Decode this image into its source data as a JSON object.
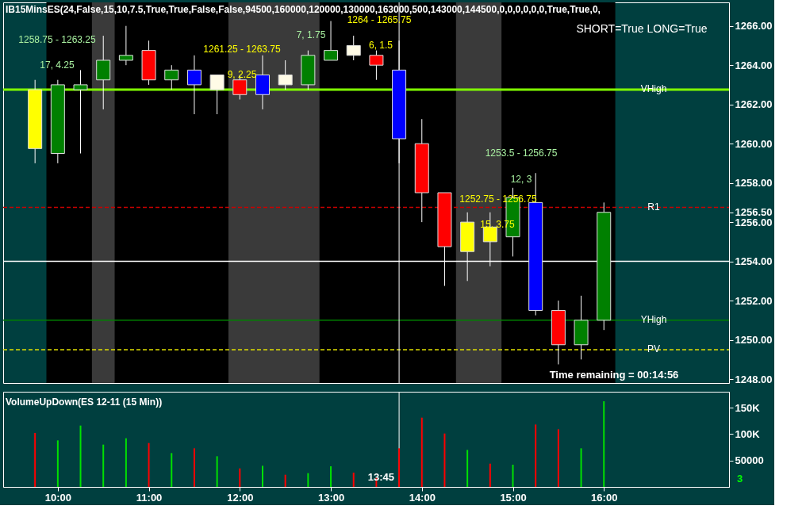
{
  "chart_data": [
    {
      "type": "candlestick",
      "title": "IB15MinsES(24,False,15,10,7.5,True,True,False,False,94500,160000,120000,130000,163000,500,143000,144500,0,0,0,0,0,0,True,True,0,",
      "x": [
        9.75,
        10,
        10.25,
        10.5,
        10.75,
        11,
        11.25,
        11.5,
        11.75,
        12,
        12.25,
        12.5,
        12.75,
        13,
        13.25,
        13.5,
        13.75,
        14,
        14.25,
        14.5,
        14.75,
        15,
        15.25,
        15.5,
        15.75,
        16
      ],
      "ohlc": [
        [
          1262.75,
          1263.25,
          1259,
          1259.75
        ],
        [
          1259.5,
          1263.25,
          1259,
          1263
        ],
        [
          1262.75,
          1263.75,
          1259.5,
          1263
        ],
        [
          1263.25,
          1265.5,
          1261.75,
          1264.25
        ],
        [
          1264.25,
          1266,
          1264,
          1264.5
        ],
        [
          1264.75,
          1265.25,
          1263,
          1263.25
        ],
        [
          1263.25,
          1264,
          1262.75,
          1263.75
        ],
        [
          1263.75,
          1264.5,
          1261.5,
          1263
        ],
        [
          1262.75,
          1263.5,
          1261.5,
          1263.5
        ],
        [
          1263.25,
          1263.5,
          1262.25,
          1262.5
        ],
        [
          1263.5,
          1264.5,
          1261.75,
          1262.5
        ],
        [
          1263,
          1264.25,
          1262.75,
          1263.5
        ],
        [
          1263,
          1264.75,
          1262.75,
          1264.5
        ],
        [
          1264.25,
          1266.25,
          1264.25,
          1264.75
        ],
        [
          1264.5,
          1265.5,
          1264.25,
          1265
        ],
        [
          1264.5,
          1264.75,
          1263.25,
          1264
        ],
        [
          1263.75,
          1265.25,
          1259,
          1260.25
        ],
        [
          1260,
          1261.25,
          1256,
          1257.5
        ],
        [
          1257.5,
          1257.5,
          1252.75,
          1254.75
        ],
        [
          1256,
          1256.5,
          1253,
          1254.5
        ],
        [
          1255.75,
          1256.5,
          1253.75,
          1255
        ],
        [
          1255.25,
          1257.75,
          1254.25,
          1257.25
        ],
        [
          1257,
          1258.5,
          1251.25,
          1251.5
        ],
        [
          1251.5,
          1252,
          1248.75,
          1249.75
        ],
        [
          1249.75,
          1252.25,
          1249,
          1251
        ],
        [
          1251,
          1257,
          1250.5,
          1256.5
        ]
      ],
      "colors": [
        "#ffff00",
        "#008000",
        "#008000",
        "#008000",
        "#008000",
        "#ff0000",
        "#008000",
        "#0000ff",
        "#fffbe6",
        "#ff0000",
        "#0000ff",
        "#fffbe6",
        "#008000",
        "#008000",
        "#fffbe6",
        "#ff0000",
        "#0000ff",
        "#ff0000",
        "#ff0000",
        "#ffff00",
        "#ffff00",
        "#008000",
        "#0000ff",
        "#ff0000",
        "#008000",
        "#008000"
      ],
      "xlim": [
        9.4,
        17.375
      ],
      "ylim": [
        1247.8,
        1267.2
      ],
      "yticks": [
        {
          "value": 1248,
          "label": "1248.00"
        },
        {
          "value": 1250,
          "label": "1250.00"
        },
        {
          "value": 1252,
          "label": "1252.00"
        },
        {
          "value": 1254,
          "label": "1254.00"
        },
        {
          "value": 1256,
          "label": "1256.00"
        },
        {
          "value": 1256.5,
          "label": "1256.50"
        },
        {
          "value": 1258,
          "label": "1258.00"
        },
        {
          "value": 1260,
          "label": "1260.00"
        },
        {
          "value": 1262,
          "label": "1262.00"
        },
        {
          "value": 1264,
          "label": "1264.00"
        },
        {
          "value": 1266,
          "label": "1266.00"
        }
      ],
      "tick_labels": "y",
      "grid": false,
      "bands": [
        {
          "axis": "x",
          "from": 9.875,
          "to": 16.125,
          "color": "#000000"
        },
        {
          "axis": "x",
          "from": 10.375,
          "to": 10.625,
          "color": "#3a3a3a"
        },
        {
          "axis": "x",
          "from": 11.875,
          "to": 12.875,
          "color": "#3a3a3a"
        },
        {
          "axis": "x",
          "from": 14.375,
          "to": 14.875,
          "color": "#3a3a3a"
        }
      ],
      "ref_lines": [
        {
          "axis": "y",
          "value": 1262.75,
          "label": "VHigh",
          "color": "#80ff00",
          "line_style": "solid"
        },
        {
          "axis": "y",
          "value": 1256.75,
          "label": "R1",
          "color": "#cc0000",
          "line_style": "dashed"
        },
        {
          "axis": "y",
          "value": 1254,
          "color": "#ffffff",
          "line_style": "solid"
        },
        {
          "axis": "y",
          "value": 1251,
          "label": "YHigh",
          "color": "#008000",
          "line_style": "solid"
        },
        {
          "axis": "y",
          "value": 1249.5,
          "label": "PV",
          "color": "#e0e000",
          "line_style": "dashed"
        },
        {
          "axis": "x",
          "value": 13.75,
          "color": "#ffffff",
          "line_style": "solid"
        }
      ],
      "annotations": [
        "1258.75 - 1263.25",
        "17, 4.25",
        "1261.25 - 1263.75",
        "9, 2.25",
        "7, 1.75",
        "1264 - 1265.75",
        "6, 1.5",
        "1253.5 - 1256.75",
        "12, 3",
        "1252.75 - 1256.75",
        "15, 3.75",
        "SHORT=True LONG=True",
        "Time remaining = 00:14:56"
      ]
    },
    {
      "type": "bar",
      "title": "VolumeUpDown(ES 12-11 (15 Min))",
      "x": [
        9.75,
        10,
        10.25,
        10.5,
        10.75,
        11,
        11.25,
        11.5,
        11.75,
        12,
        12.25,
        12.5,
        12.75,
        13,
        13.25,
        13.5,
        13.75,
        14,
        14.25,
        14.5,
        14.75,
        15,
        15.25,
        15.5,
        15.75,
        16
      ],
      "values": [
        102000,
        88000,
        116000,
        80000,
        92000,
        83000,
        64000,
        73000,
        58000,
        35000,
        40000,
        23000,
        26000,
        39000,
        27000,
        17000,
        73000,
        131000,
        101000,
        70000,
        44000,
        42000,
        118000,
        109000,
        73000,
        162000
      ],
      "colors": [
        "#ff0000",
        "#00e000",
        "#00e000",
        "#00e000",
        "#00e000",
        "#ff0000",
        "#00e000",
        "#ff0000",
        "#00e000",
        "#ff0000",
        "#00e000",
        "#ff0000",
        "#00e000",
        "#00e000",
        "#ff0000",
        "#ff0000",
        "#ff0000",
        "#ff0000",
        "#ff0000",
        "#00e000",
        "#ff0000",
        "#00e000",
        "#ff0000",
        "#ff0000",
        "#00e000",
        "#00e000"
      ],
      "xlim": [
        9.4,
        17.375
      ],
      "ylim": [
        0,
        180000
      ],
      "xticks": [
        {
          "value": 10,
          "label": "10:00"
        },
        {
          "value": 11,
          "label": "11:00"
        },
        {
          "value": 12,
          "label": "12:00"
        },
        {
          "value": 13,
          "label": "13:00"
        },
        {
          "value": 14,
          "label": "14:00"
        },
        {
          "value": 15,
          "label": "15:00"
        },
        {
          "value": 16,
          "label": "16:00"
        }
      ],
      "yticks": [
        {
          "value": 50000,
          "label": "50000"
        },
        {
          "value": 100000,
          "label": "100K"
        },
        {
          "value": 150000,
          "label": "150K"
        }
      ],
      "grid": false,
      "ref_lines": [
        {
          "axis": "x",
          "value": 13.75,
          "color": "#ffffff",
          "line_style": "solid"
        }
      ],
      "annotations": [
        "3",
        "13:45"
      ]
    }
  ]
}
